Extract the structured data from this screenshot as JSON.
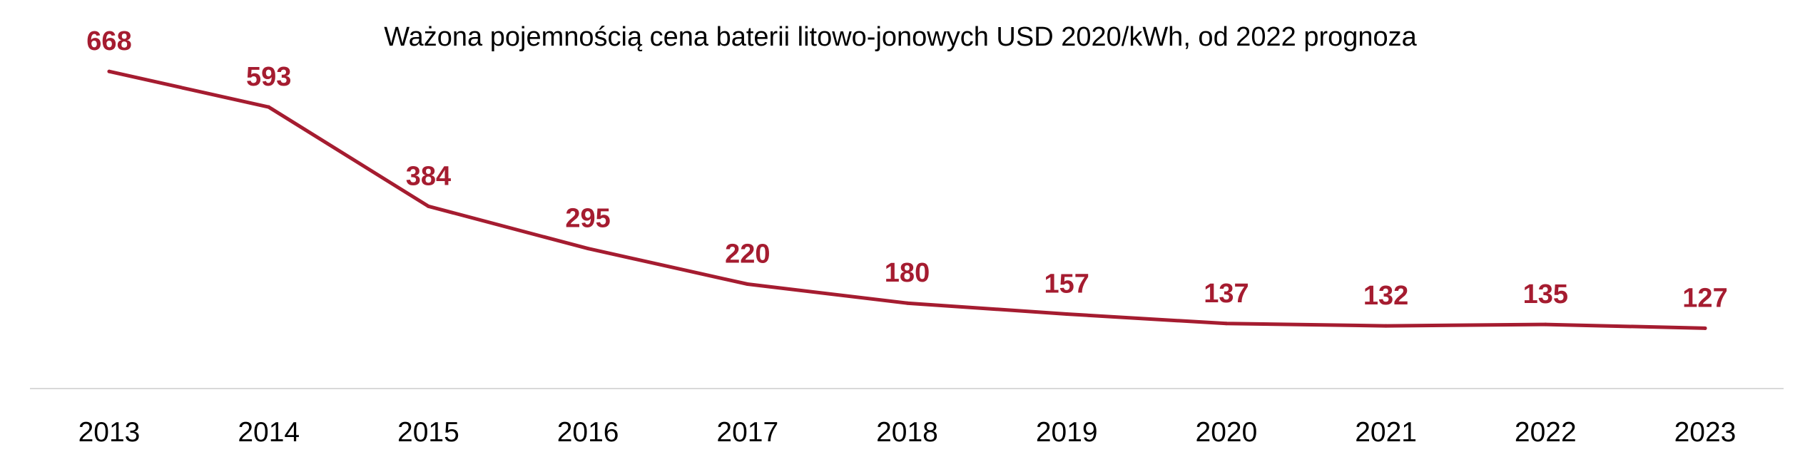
{
  "chart_data": {
    "type": "line",
    "title": "Ważona pojemnością cena baterii litowo-jonowych USD 2020/kWh, od 2022 prognoza",
    "categories": [
      "2013",
      "2014",
      "2015",
      "2016",
      "2017",
      "2018",
      "2019",
      "2020",
      "2021",
      "2022",
      "2023"
    ],
    "series": [
      {
        "values": [
          668,
          593,
          384,
          295,
          220,
          180,
          157,
          137,
          132,
          135,
          127
        ],
        "color": "#A51C30"
      }
    ],
    "data_labels": [
      "668",
      "593",
      "384",
      "295",
      "220",
      "180",
      "157",
      "137",
      "132",
      "135",
      "127"
    ],
    "ylim": [
      0,
      900
    ],
    "grid": false,
    "legend": "none",
    "axis_color": "#D9D9D9"
  }
}
